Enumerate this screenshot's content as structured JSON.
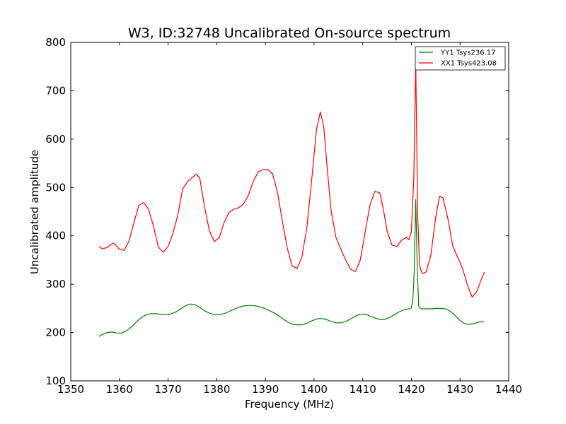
{
  "chart_data": {
    "type": "line",
    "title": "W3, ID:32748 Uncalibrated On-source spectrum",
    "xlabel": "Frequency (MHz)",
    "ylabel": "Uncalibrated amplitude",
    "xlim": [
      1350,
      1440
    ],
    "ylim": [
      100,
      800
    ],
    "xticks": [
      "1350",
      "1360",
      "1370",
      "1380",
      "1390",
      "1400",
      "1410",
      "1420",
      "1430",
      "1440"
    ],
    "yticks": [
      "100",
      "200",
      "300",
      "400",
      "500",
      "600",
      "700",
      "800"
    ],
    "grid": false,
    "legend_position": "top-right",
    "series": [
      {
        "name": "YY1 Tsys236.17",
        "color": "#008000",
        "x": [
          1355.8,
          1356.5,
          1357.5,
          1358.5,
          1359.5,
          1360.5,
          1361.5,
          1362.5,
          1363.5,
          1364.5,
          1365.5,
          1366.5,
          1367.5,
          1368.5,
          1369.5,
          1370.5,
          1371.5,
          1372.5,
          1373.5,
          1374.5,
          1375.5,
          1376.5,
          1377.5,
          1378.5,
          1379.5,
          1380.5,
          1381.5,
          1382.5,
          1383.5,
          1384.5,
          1385.5,
          1386.5,
          1387.5,
          1388.5,
          1389.5,
          1390.5,
          1391.5,
          1392.5,
          1393.5,
          1394.5,
          1395.5,
          1396.5,
          1397.5,
          1398.5,
          1399.5,
          1400.5,
          1401.5,
          1402.5,
          1403.5,
          1404.5,
          1405.5,
          1406.5,
          1407.5,
          1408.5,
          1409.5,
          1410.5,
          1411.5,
          1412.5,
          1413.5,
          1414.5,
          1415.5,
          1416.5,
          1417.5,
          1418.5,
          1419.5,
          1420.0,
          1420.3,
          1420.6,
          1420.9,
          1421.2,
          1421.5,
          1422.0,
          1423.0,
          1424.0,
          1425.0,
          1426.0,
          1427.0,
          1428.0,
          1429.0,
          1430.0,
          1431.0,
          1432.0,
          1433.0,
          1434.0,
          1435.0
        ],
        "y": [
          192,
          196,
          200,
          201,
          199,
          199,
          204,
          212,
          222,
          231,
          237,
          239,
          239,
          238,
          237,
          238,
          242,
          248,
          255,
          259,
          258,
          252,
          245,
          240,
          237,
          237,
          239,
          243,
          248,
          252,
          255,
          256,
          256,
          254,
          251,
          247,
          242,
          236,
          229,
          222,
          217,
          216,
          216,
          219,
          224,
          228,
          229,
          227,
          223,
          220,
          220,
          223,
          228,
          234,
          238,
          238,
          234,
          230,
          227,
          227,
          231,
          237,
          243,
          247,
          249,
          251,
          268,
          330,
          475,
          340,
          254,
          249,
          249,
          249,
          250,
          250,
          249,
          244,
          235,
          225,
          218,
          217,
          219,
          222,
          222
        ]
      },
      {
        "name": "XX1 Tsys423.08",
        "color": "#ff0000",
        "x": [
          1355.8,
          1356.5,
          1357.5,
          1358.5,
          1359.0,
          1360.0,
          1361.0,
          1362.0,
          1363.0,
          1364.0,
          1365.0,
          1366.0,
          1367.0,
          1368.0,
          1369.0,
          1370.0,
          1371.0,
          1372.0,
          1373.0,
          1374.0,
          1375.0,
          1375.8,
          1376.5,
          1377.5,
          1378.5,
          1379.5,
          1380.5,
          1381.5,
          1382.5,
          1383.5,
          1384.5,
          1385.5,
          1386.5,
          1387.5,
          1388.5,
          1389.5,
          1390.5,
          1391.5,
          1392.5,
          1393.5,
          1394.5,
          1395.5,
          1396.5,
          1397.5,
          1398.5,
          1399.5,
          1400.5,
          1401.3,
          1402.0,
          1402.8,
          1403.5,
          1404.5,
          1405.5,
          1406.5,
          1407.5,
          1408.5,
          1409.5,
          1410.5,
          1411.5,
          1412.5,
          1413.5,
          1414.2,
          1415.0,
          1416.0,
          1417.0,
          1418.0,
          1419.0,
          1419.5,
          1420.0,
          1420.5,
          1420.9,
          1421.3,
          1421.7,
          1422.2,
          1423.0,
          1424.0,
          1425.0,
          1425.8,
          1426.5,
          1427.5,
          1428.5,
          1429.5,
          1430.5,
          1431.5,
          1432.5,
          1433.5,
          1434.5,
          1435.0
        ],
        "y": [
          378,
          373,
          376,
          384,
          384,
          372,
          370,
          390,
          428,
          463,
          469,
          455,
          420,
          377,
          366,
          378,
          405,
          443,
          497,
          512,
          521,
          527,
          520,
          460,
          410,
          388,
          396,
          427,
          448,
          455,
          458,
          466,
          484,
          512,
          532,
          537,
          537,
          528,
          489,
          430,
          374,
          338,
          332,
          356,
          416,
          515,
          620,
          656,
          625,
          530,
          452,
          397,
          373,
          350,
          331,
          326,
          350,
          408,
          464,
          492,
          489,
          457,
          410,
          381,
          378,
          391,
          397,
          392,
          408,
          520,
          760,
          440,
          338,
          322,
          325,
          360,
          438,
          482,
          478,
          436,
          379,
          356,
          333,
          299,
          273,
          286,
          313,
          325
        ]
      }
    ]
  }
}
